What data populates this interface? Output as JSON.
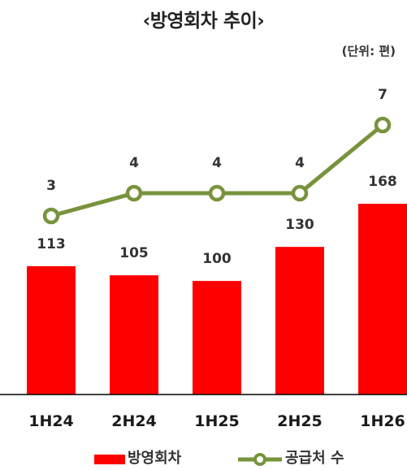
{
  "title": "‹방영회차 추이›",
  "unit": "(단위:  편)",
  "colors": {
    "bar": "#ff0000",
    "line": "#77933c"
  },
  "chart_data": {
    "type": "bar",
    "categories": [
      "1H24",
      "2H24",
      "1H25",
      "2H25",
      "1H26"
    ],
    "series": [
      {
        "name": "방영회차",
        "type": "bar",
        "values": [
          113,
          105,
          100,
          130,
          168
        ]
      },
      {
        "name": "공급처 수",
        "type": "line",
        "values": [
          3,
          4,
          4,
          4,
          7
        ]
      }
    ],
    "legend": "bottom",
    "grid": false
  }
}
